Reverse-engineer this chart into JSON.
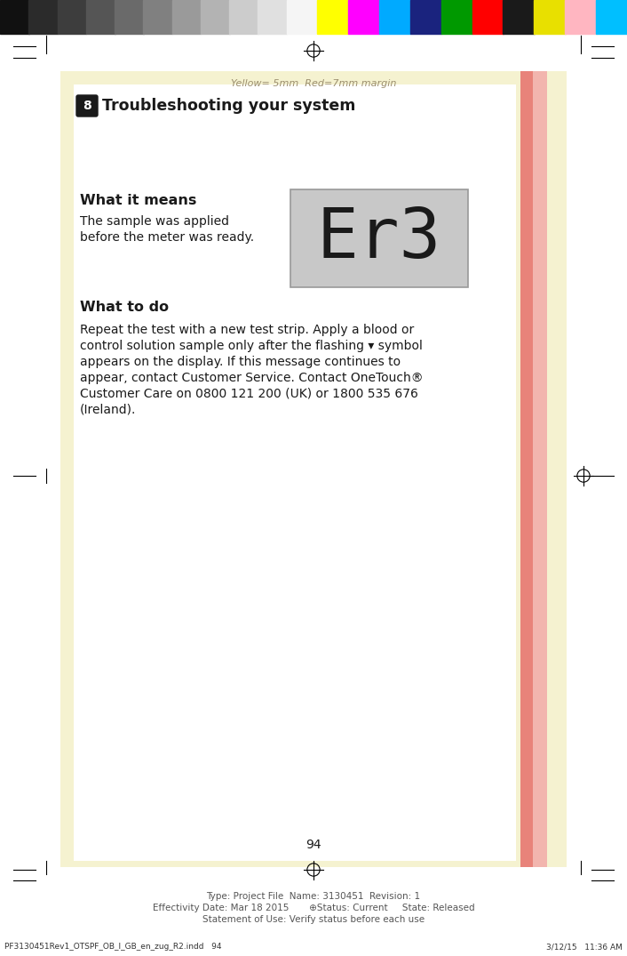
{
  "page_bg": "#FFFFFF",
  "yellow_margin_color": "#F5F2D0",
  "red_margin_color1": "#E8837A",
  "red_margin_color2": "#F2B5AE",
  "white_content_bg": "#FFFFFF",
  "header_number": "8",
  "header_title": "Troubleshooting your system",
  "margin_label": "Yellow= 5mm  Red=7mm margin",
  "margin_label_color": "#9B8E6E",
  "what_it_means_title": "What it means",
  "what_it_means_text1": "The sample was applied",
  "what_it_means_text2": "before the meter was ready.",
  "what_to_do_title": "What to do",
  "what_to_do_lines": [
    "Repeat the test with a new test strip. Apply a blood or",
    "control solution sample only after the flashing ▾ symbol",
    "appears on the display. If this message continues to",
    "appear, contact Customer Service. Contact OneTouch®",
    "Customer Care on 0800 121 200 (UK) or 1800 535 676",
    "(Ireland)."
  ],
  "display_text": "Er3",
  "display_bg": "#C8C8C8",
  "display_border": "#999999",
  "page_number": "94",
  "footer_line1": "Type: Project File  Name: 3130451  Revision: 1",
  "footer_line2": "Effectivity Date: Mar 18 2015       ⊕Status: Current     State: Released",
  "footer_line3": "Statement of Use: Verify status before each use",
  "footer_left": "PF3130451Rev1_OTSPF_OB_I_GB_en_zug_R2.indd   94",
  "footer_right": "3/12/15   11:36 AM",
  "gray_bar_colors": [
    "#111111",
    "#2B2B2B",
    "#3D3D3D",
    "#555555",
    "#6A6A6A",
    "#808080",
    "#9A9A9A",
    "#B3B3B3",
    "#CCCCCC",
    "#E0E0E0",
    "#F5F5F5"
  ],
  "color_bar_colors": [
    "#FFFF00",
    "#FF00FF",
    "#00AAFF",
    "#1A237E",
    "#009900",
    "#FF0000",
    "#1A1A1A",
    "#E8E000",
    "#FFB6C1",
    "#00BFFF"
  ]
}
